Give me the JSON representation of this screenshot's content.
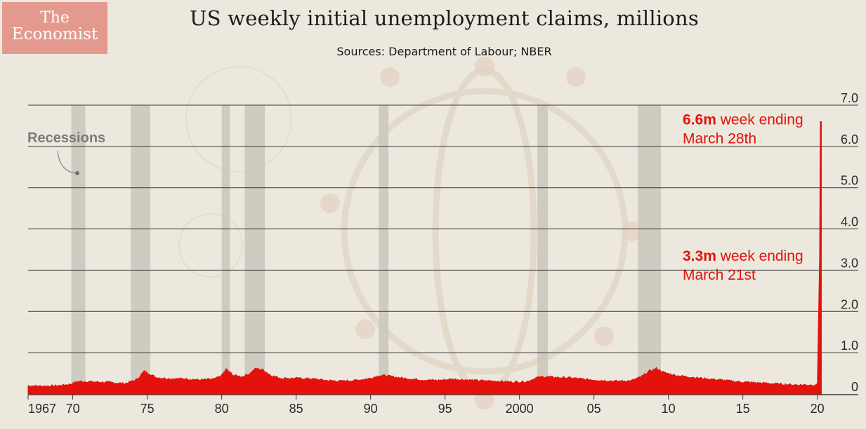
{
  "logo": {
    "line1": "The",
    "line2": "Economist"
  },
  "chart_data": {
    "type": "area",
    "title": "US weekly initial unemployment claims, millions",
    "subtitle": "Sources: Department of Labour; NBER",
    "xlabel": "",
    "ylabel": "",
    "x_ticks": [
      "1967",
      "70",
      "75",
      "80",
      "85",
      "90",
      "95",
      "2000",
      "05",
      "10",
      "15",
      "20"
    ],
    "x_tick_years": [
      1967,
      1970,
      1975,
      1980,
      1985,
      1990,
      1995,
      2000,
      2005,
      2010,
      2015,
      2020
    ],
    "y_ticks": [
      "0",
      "1.0",
      "2.0",
      "3.0",
      "4.0",
      "5.0",
      "6.0",
      "7.0"
    ],
    "y_tick_values": [
      0,
      1,
      2,
      3,
      4,
      5,
      6,
      7
    ],
    "xlim": [
      1967,
      2020.25
    ],
    "ylim": [
      0,
      7
    ],
    "grid": true,
    "recessions_label": "Recessions",
    "recessions": [
      [
        1969.9,
        1970.85
      ],
      [
        1973.9,
        1975.2
      ],
      [
        1980.0,
        1980.55
      ],
      [
        1981.55,
        1982.9
      ],
      [
        1990.55,
        1991.2
      ],
      [
        2001.2,
        2001.9
      ],
      [
        2007.95,
        2009.5
      ]
    ],
    "series": [
      {
        "color": "#e3120b",
        "x": [
          1967.0,
          1968.0,
          1969.0,
          1969.9,
          1970.3,
          1970.9,
          1971.5,
          1972.5,
          1973.5,
          1974.3,
          1974.8,
          1975.1,
          1975.6,
          1976.5,
          1977.5,
          1978.5,
          1979.5,
          1980.0,
          1980.3,
          1980.8,
          1981.4,
          1981.9,
          1982.3,
          1982.8,
          1983.3,
          1984.0,
          1985.0,
          1986.0,
          1987.0,
          1988.0,
          1989.0,
          1990.0,
          1990.6,
          1991.1,
          1991.8,
          1992.5,
          1993.5,
          1994.5,
          1995.5,
          1996.5,
          1997.5,
          1998.5,
          1999.5,
          2000.5,
          2001.2,
          2001.8,
          2002.5,
          2003.5,
          2004.5,
          2005.5,
          2006.5,
          2007.5,
          2008.2,
          2008.7,
          2009.2,
          2009.7,
          2010.5,
          2011.5,
          2012.5,
          2013.5,
          2014.5,
          2015.5,
          2016.5,
          2017.5,
          2018.5,
          2019.5,
          2020.0,
          2020.15,
          2020.2
        ],
        "values": [
          0.2,
          0.19,
          0.2,
          0.24,
          0.3,
          0.3,
          0.29,
          0.28,
          0.25,
          0.35,
          0.55,
          0.5,
          0.4,
          0.37,
          0.37,
          0.34,
          0.36,
          0.45,
          0.6,
          0.45,
          0.42,
          0.5,
          0.62,
          0.58,
          0.45,
          0.38,
          0.38,
          0.37,
          0.33,
          0.31,
          0.33,
          0.38,
          0.45,
          0.44,
          0.4,
          0.37,
          0.34,
          0.33,
          0.36,
          0.34,
          0.32,
          0.31,
          0.29,
          0.3,
          0.4,
          0.42,
          0.4,
          0.39,
          0.35,
          0.33,
          0.31,
          0.32,
          0.42,
          0.55,
          0.62,
          0.52,
          0.45,
          0.41,
          0.37,
          0.34,
          0.3,
          0.28,
          0.26,
          0.24,
          0.22,
          0.22,
          0.22,
          3.3,
          6.6
        ]
      }
    ],
    "annotations": [
      {
        "bold": "6.6m",
        "line1": "week ending",
        "line2": "March 28th",
        "value": 6.6
      },
      {
        "bold": "3.3m",
        "line1": "week ending",
        "line2": "March 21st",
        "value": 3.3
      }
    ],
    "colors": {
      "background": "#ece8dd",
      "grid": "#3a3a3a",
      "recession": "#c9c5bc",
      "series": "#e3120b",
      "annotation": "#e3120b"
    }
  }
}
